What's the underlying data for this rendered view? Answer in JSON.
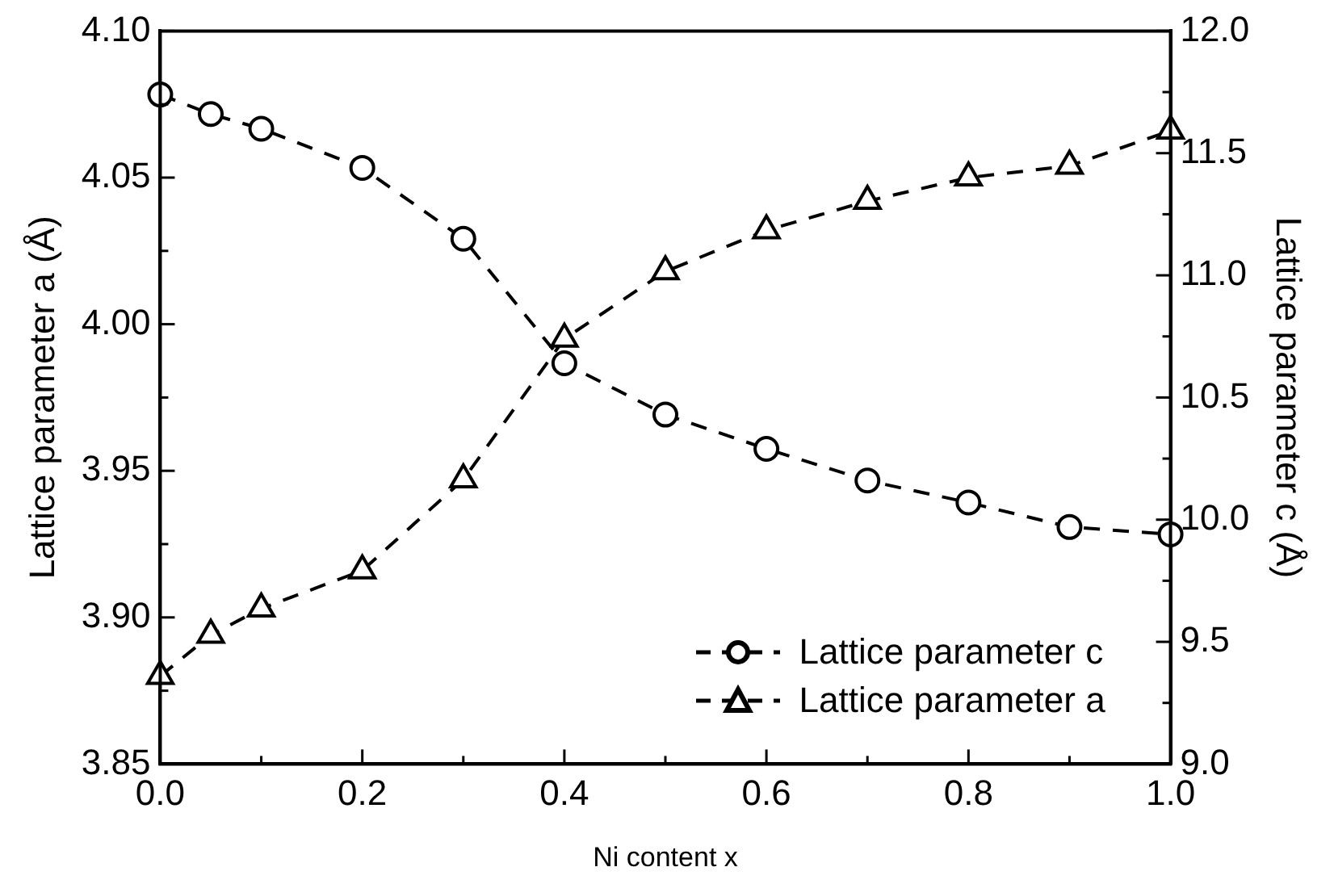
{
  "chart_data": {
    "type": "line",
    "xlabel": "Ni content x",
    "ylabel": "Lattice parameter a (Å)",
    "y2label": "Lattice parameter c (Å)",
    "x": [
      0,
      0.05,
      0.1,
      0.2,
      0.3,
      0.4,
      0.5,
      0.6,
      0.7,
      0.8,
      0.9,
      1.0
    ],
    "series": [
      {
        "name": "Lattice parameter c",
        "color": "#000000",
        "axis": "y2",
        "marker": "circle",
        "line_style": "dashed",
        "values": [
          11.74,
          11.66,
          11.6,
          11.44,
          11.15,
          10.64,
          10.43,
          10.29,
          10.16,
          10.07,
          9.97,
          9.94
        ]
      },
      {
        "name": "Lattice parameter a",
        "color": "#000000",
        "axis": "y",
        "marker": "triangle",
        "line_style": "dashed",
        "values": [
          3.88,
          3.894,
          3.903,
          3.916,
          3.947,
          3.995,
          4.018,
          4.032,
          4.042,
          4.05,
          4.054,
          4.066
        ]
      }
    ],
    "xlim": [
      0,
      1.0
    ],
    "xticks": [
      {
        "value": 0,
        "label": "0.0"
      },
      {
        "value": 0.1,
        "label": null
      },
      {
        "value": 0.2,
        "label": "0.2"
      },
      {
        "value": 0.3,
        "label": null
      },
      {
        "value": 0.4,
        "label": "0.4"
      },
      {
        "value": 0.5,
        "label": null
      },
      {
        "value": 0.6,
        "label": "0.6"
      },
      {
        "value": 0.7,
        "label": null
      },
      {
        "value": 0.8,
        "label": "0.8"
      },
      {
        "value": 0.9,
        "label": null
      },
      {
        "value": 1.0,
        "label": "1.0"
      }
    ],
    "ylim": [
      3.85,
      4.1
    ],
    "yticks": [
      {
        "value": 3.85,
        "label": "3.85"
      },
      {
        "value": 3.875,
        "label": null
      },
      {
        "value": 3.9,
        "label": "3.90"
      },
      {
        "value": 3.925,
        "label": null
      },
      {
        "value": 3.95,
        "label": "3.95"
      },
      {
        "value": 3.975,
        "label": null
      },
      {
        "value": 4.0,
        "label": "4.00"
      },
      {
        "value": 4.025,
        "label": null
      },
      {
        "value": 4.05,
        "label": "4.05"
      },
      {
        "value": 4.075,
        "label": null
      },
      {
        "value": 4.1,
        "label": "4.10"
      }
    ],
    "y2lim": [
      9.0,
      12.0
    ],
    "y2ticks": [
      {
        "value": 9,
        "label": "9.0"
      },
      {
        "value": 9.25,
        "label": null
      },
      {
        "value": 9.5,
        "label": "9.5"
      },
      {
        "value": 9.75,
        "label": null
      },
      {
        "value": 10,
        "label": "10.0"
      },
      {
        "value": 10.25,
        "label": null
      },
      {
        "value": 10.5,
        "label": "10.5"
      },
      {
        "value": 10.75,
        "label": null
      },
      {
        "value": 11,
        "label": "11.0"
      },
      {
        "value": 11.25,
        "label": null
      },
      {
        "value": 11.5,
        "label": "11.5"
      },
      {
        "value": 11.75,
        "label": null
      },
      {
        "value": 12,
        "label": "12.0"
      }
    ],
    "grid": false,
    "legend": "bottom right"
  }
}
